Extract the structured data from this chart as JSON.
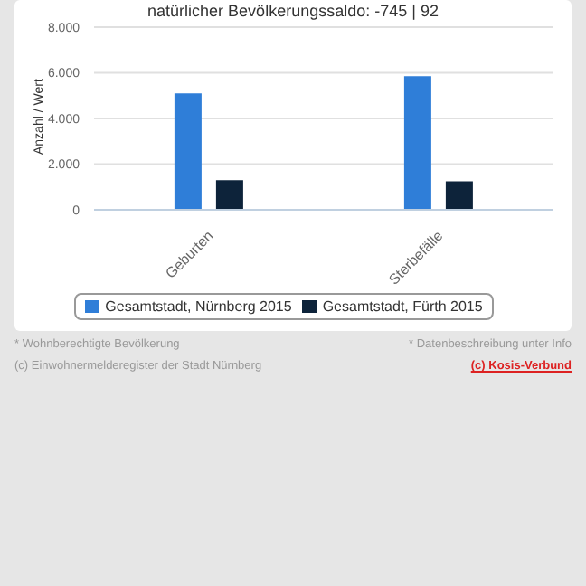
{
  "chart_data": {
    "type": "bar",
    "title": "natürlicher Bevölkerungssaldo: -745 | 92",
    "ylabel": "Anzahl / Wert",
    "categories": [
      "Geburten",
      "Sterbefälle"
    ],
    "series": [
      {
        "name": "Gesamtstadt, Nürnberg 2015",
        "color": "#2f7ed8",
        "values": [
          5100,
          5850
        ]
      },
      {
        "name": "Gesamtstadt, Fürth 2015",
        "color": "#0d233a",
        "values": [
          1300,
          1250
        ]
      }
    ],
    "ylim": [
      0,
      8000
    ],
    "yticks": [
      {
        "value": 0,
        "label": "0"
      },
      {
        "value": 2000,
        "label": "2.000"
      },
      {
        "value": 4000,
        "label": "4.000"
      },
      {
        "value": 6000,
        "label": "6.000"
      },
      {
        "value": 8000,
        "label": "8.000"
      }
    ],
    "grid": "y",
    "legend": "bottom",
    "annotations": [
      "* Wohnberechtigte Bevölkerung",
      "* Datenbeschreibung unter Info",
      "(c) Einwohnermelderegister der Stadt Nürnberg",
      "(c) Kosis-Verbund"
    ]
  }
}
